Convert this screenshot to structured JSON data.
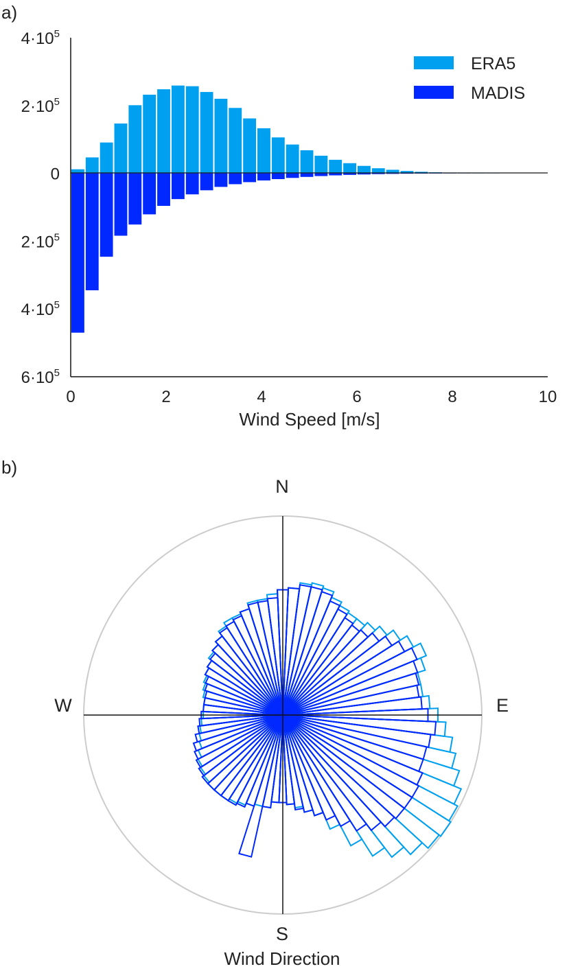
{
  "panel_a": {
    "label": "a)",
    "y_ticks": [
      {
        "base": "4·10",
        "exp": "5",
        "value": 400000
      },
      {
        "base": "2·10",
        "exp": "5",
        "value": 200000
      },
      {
        "base": "0",
        "exp": "",
        "value": 0
      },
      {
        "base": "2·10",
        "exp": "5",
        "value": -200000
      },
      {
        "base": "4·10",
        "exp": "5",
        "value": -400000
      },
      {
        "base": "6·10",
        "exp": "5",
        "value": -600000
      }
    ],
    "x_ticks": [
      "0",
      "2",
      "4",
      "6",
      "8",
      "10"
    ]
  },
  "panel_b": {
    "label": "b)",
    "compass": {
      "n": "N",
      "e": "E",
      "s": "S",
      "w": "W"
    }
  },
  "colors": {
    "era5": "#00a0f0",
    "madis": "#0028ff",
    "grid": "#cccccc",
    "axis": "#111111"
  },
  "chart_data": [
    {
      "type": "bar",
      "title": "",
      "xlabel": "Wind Speed [m/s]",
      "ylabel": "",
      "xlim": [
        0,
        10
      ],
      "ylim": [
        -600000,
        400000
      ],
      "bin_width": 0.3,
      "x": [
        0.15,
        0.45,
        0.75,
        1.05,
        1.35,
        1.65,
        1.95,
        2.25,
        2.55,
        2.85,
        3.15,
        3.45,
        3.75,
        4.05,
        4.35,
        4.65,
        4.95,
        5.25,
        5.55,
        5.85,
        6.15,
        6.45,
        6.75,
        7.05,
        7.35,
        7.65,
        7.95,
        8.25,
        8.55,
        8.85
      ],
      "series": [
        {
          "name": "ERA5",
          "values": [
            12000,
            47000,
            91000,
            147000,
            201000,
            232000,
            248000,
            259000,
            257000,
            240000,
            220000,
            193000,
            162000,
            133000,
            106000,
            85000,
            68000,
            52000,
            40000,
            30000,
            22000,
            15000,
            10500,
            7000,
            4600,
            3000,
            1900,
            1100,
            600,
            300
          ]
        },
        {
          "name": "MADIS",
          "values": [
            -470000,
            -345000,
            -246000,
            -184000,
            -151000,
            -121000,
            -96000,
            -76000,
            -62000,
            -50000,
            -40000,
            -32000,
            -26000,
            -21000,
            -17000,
            -13500,
            -10500,
            -8000,
            -6000,
            -4500,
            -3300,
            -2300,
            -1600,
            -1100,
            -700,
            -450,
            -280,
            -170,
            -100,
            -50
          ]
        }
      ],
      "legend": {
        "position": "top-right",
        "entries": [
          "ERA5",
          "MADIS"
        ]
      }
    },
    {
      "type": "polar-bar",
      "title": "",
      "xlabel": "Wind Direction",
      "direction_labels": [
        "N",
        "E",
        "S",
        "W"
      ],
      "bin_width_deg": 5,
      "directions_deg": [
        0,
        5,
        10,
        15,
        20,
        25,
        30,
        35,
        40,
        45,
        50,
        55,
        60,
        65,
        70,
        75,
        80,
        85,
        90,
        95,
        100,
        105,
        110,
        115,
        120,
        125,
        130,
        135,
        140,
        145,
        150,
        155,
        160,
        165,
        170,
        175,
        180,
        185,
        190,
        195,
        200,
        205,
        210,
        215,
        220,
        225,
        230,
        235,
        240,
        245,
        250,
        255,
        260,
        265,
        270,
        275,
        280,
        285,
        290,
        295,
        300,
        305,
        310,
        315,
        320,
        325,
        330,
        335,
        340,
        345,
        350,
        355
      ],
      "rmax": 1.0,
      "series": [
        {
          "name": "ERA5",
          "values": [
            0.63,
            0.64,
            0.67,
            0.68,
            0.67,
            0.64,
            0.62,
            0.61,
            0.61,
            0.63,
            0.66,
            0.7,
            0.74,
            0.78,
            0.75,
            0.71,
            0.71,
            0.74,
            0.78,
            0.82,
            0.86,
            0.89,
            0.93,
            0.97,
            0.99,
            1.0,
            0.99,
            0.95,
            0.9,
            0.84,
            0.74,
            0.62,
            0.53,
            0.5,
            0.47,
            0.45,
            0.44,
            0.44,
            0.47,
            0.47,
            0.48,
            0.49,
            0.5,
            0.51,
            0.51,
            0.51,
            0.5,
            0.49,
            0.48,
            0.46,
            0.44,
            0.43,
            0.42,
            0.41,
            0.4,
            0.4,
            0.4,
            0.41,
            0.42,
            0.43,
            0.44,
            0.45,
            0.47,
            0.48,
            0.5,
            0.53,
            0.55,
            0.55,
            0.56,
            0.59,
            0.59,
            0.61
          ]
        },
        {
          "name": "MADIS",
          "values": [
            0.63,
            0.64,
            0.66,
            0.66,
            0.65,
            0.62,
            0.6,
            0.58,
            0.57,
            0.58,
            0.61,
            0.65,
            0.69,
            0.73,
            0.71,
            0.7,
            0.69,
            0.7,
            0.73,
            0.77,
            0.75,
            0.74,
            0.74,
            0.76,
            0.77,
            0.77,
            0.77,
            0.76,
            0.73,
            0.69,
            0.63,
            0.57,
            0.53,
            0.5,
            0.48,
            0.45,
            0.44,
            0.44,
            0.47,
            0.73,
            0.48,
            0.5,
            0.51,
            0.51,
            0.51,
            0.51,
            0.51,
            0.5,
            0.49,
            0.48,
            0.47,
            0.45,
            0.43,
            0.42,
            0.41,
            0.4,
            0.4,
            0.4,
            0.41,
            0.42,
            0.44,
            0.45,
            0.46,
            0.48,
            0.5,
            0.52,
            0.53,
            0.54,
            0.56,
            0.58,
            0.58,
            0.59
          ]
        }
      ]
    }
  ]
}
